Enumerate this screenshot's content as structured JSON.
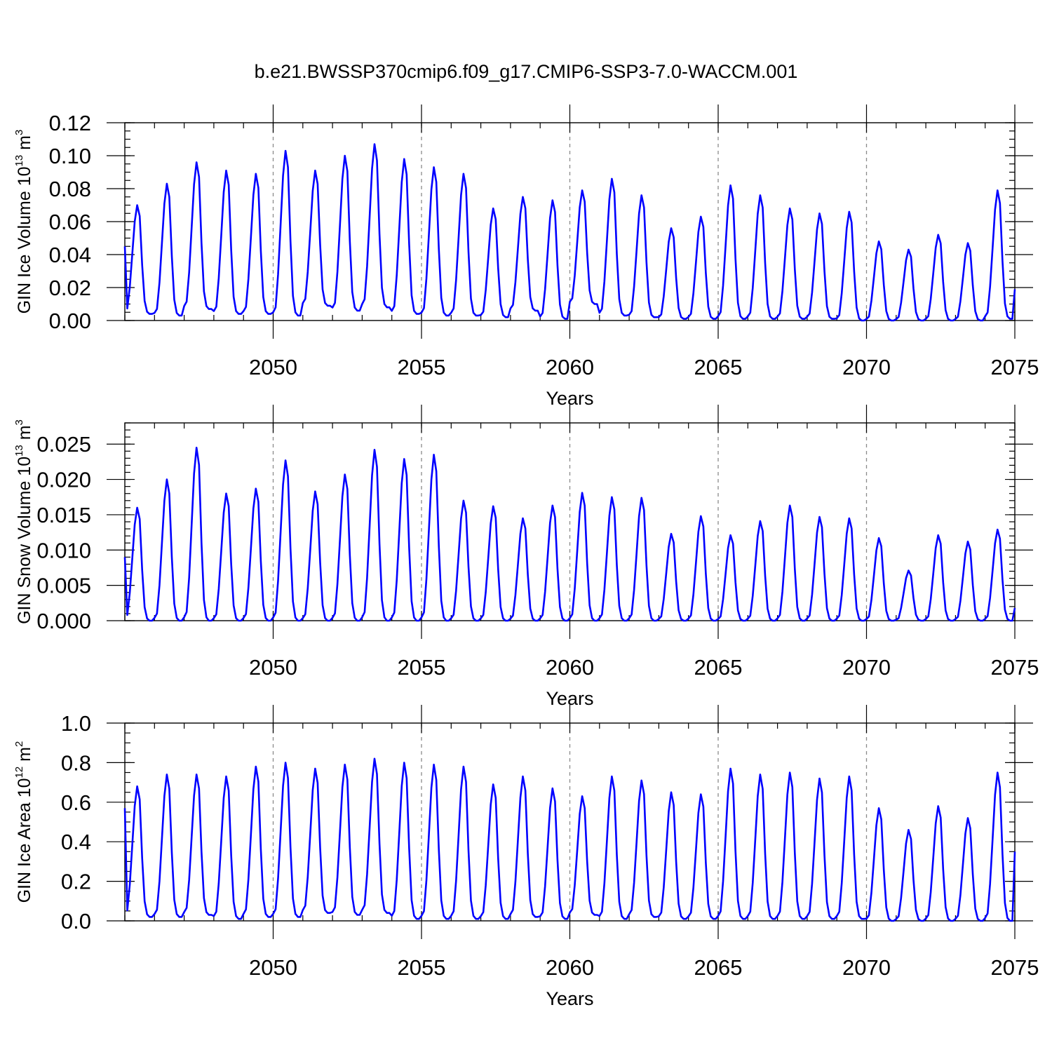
{
  "title": "b.e21.BWSSP370cmip6.f09_g17.CMIP6-SSP3-7.0-WACCM.001",
  "colors": {
    "line": "#0000ff",
    "grid": "#8a8a8a",
    "axis": "#000000",
    "background": "#ffffff"
  },
  "chart_data": [
    {
      "type": "line",
      "name": "GIN Ice Volume",
      "ylabel": {
        "text": "GIN Ice Volume 10",
        "exponent": "13",
        "unit": "m",
        "unit_exponent": "3"
      },
      "xlabel": "Years",
      "xlim": [
        2045.0,
        2075.0
      ],
      "ylim": [
        0,
        0.12
      ],
      "yticks": [
        "0.00",
        "0.02",
        "0.04",
        "0.06",
        "0.08",
        "0.10",
        "0.12"
      ],
      "xticks": [
        "2050",
        "2055",
        "2060",
        "2065",
        "2070",
        "2075"
      ],
      "x_minor_step": 1,
      "y_minor_step": 0.005,
      "grid": "dashed vertical lines every 5 years",
      "series": [
        {
          "name": "GIN Ice Volume",
          "annual_min": [
            0.004,
            0.003,
            0.007,
            0.004,
            0.004,
            0.003,
            0.009,
            0.006,
            0.008,
            0.004,
            0.003,
            0.003,
            0.002,
            0.006,
            0.001,
            0.01,
            0.003,
            0.002,
            0.001,
            0.001,
            0.001,
            0.001,
            0.001,
            0.001,
            0.0,
            0.0,
            0.0,
            0.0,
            0.0,
            0.001
          ],
          "annual_max": [
            0.07,
            0.083,
            0.096,
            0.091,
            0.089,
            0.103,
            0.091,
            0.1,
            0.107,
            0.098,
            0.093,
            0.089,
            0.068,
            0.075,
            0.073,
            0.079,
            0.086,
            0.076,
            0.056,
            0.063,
            0.082,
            0.076,
            0.068,
            0.065,
            0.066,
            0.048,
            0.043,
            0.052,
            0.047,
            0.079
          ],
          "start_value": 0.045,
          "end_value": 0.019
        }
      ]
    },
    {
      "type": "line",
      "name": "GIN Snow Volume",
      "ylabel": {
        "text": "GIN Snow Volume 10",
        "exponent": "13",
        "unit": "m",
        "unit_exponent": "3"
      },
      "xlabel": "Years",
      "xlim": [
        2045.0,
        2075.0
      ],
      "ylim": [
        0,
        0.028
      ],
      "yticks": [
        "0.000",
        "0.005",
        "0.010",
        "0.015",
        "0.020",
        "0.025"
      ],
      "xticks": [
        "2050",
        "2055",
        "2060",
        "2065",
        "2070",
        "2075"
      ],
      "x_minor_step": 1,
      "y_minor_step": 0.001,
      "grid": "dashed vertical lines every 5 years",
      "series": [
        {
          "name": "GIN Snow Volume",
          "annual_min": [
            0.0,
            0.0,
            0.0,
            0.0,
            0.0,
            0.0,
            0.0,
            0.0,
            0.0,
            0.0,
            0.0,
            0.0,
            0.0,
            0.0,
            0.0,
            0.0,
            0.0,
            0.0,
            0.0,
            0.0,
            0.0,
            0.0,
            0.0,
            0.0,
            0.0,
            0.0,
            0.0,
            0.0,
            0.0,
            0.0
          ],
          "annual_max": [
            0.016,
            0.02,
            0.0245,
            0.018,
            0.0187,
            0.0227,
            0.0183,
            0.0207,
            0.0242,
            0.0229,
            0.0235,
            0.017,
            0.0162,
            0.0145,
            0.0163,
            0.0181,
            0.0175,
            0.0174,
            0.0123,
            0.0148,
            0.0121,
            0.0141,
            0.0163,
            0.0147,
            0.0145,
            0.0117,
            0.0071,
            0.0121,
            0.0112,
            0.0129
          ],
          "start_value": 0.009,
          "end_value": 0.0018
        }
      ]
    },
    {
      "type": "line",
      "name": "GIN Ice Area",
      "ylabel": {
        "text": "GIN Ice Area 10",
        "exponent": "12",
        "unit": "m",
        "unit_exponent": "2"
      },
      "xlabel": "Years",
      "xlim": [
        2045.0,
        2075.0
      ],
      "ylim": [
        0,
        1.0
      ],
      "yticks": [
        "0.0",
        "0.2",
        "0.4",
        "0.6",
        "0.8",
        "1.0"
      ],
      "xticks": [
        "2050",
        "2055",
        "2060",
        "2065",
        "2070",
        "2075"
      ],
      "x_minor_step": 1,
      "y_minor_step": 0.05,
      "grid": "dashed vertical lines every 5 years",
      "series": [
        {
          "name": "GIN Ice Area",
          "annual_min": [
            0.02,
            0.02,
            0.03,
            0.01,
            0.02,
            0.02,
            0.04,
            0.03,
            0.04,
            0.01,
            0.01,
            0.01,
            0.01,
            0.02,
            0.01,
            0.03,
            0.01,
            0.02,
            0.01,
            0.01,
            0.01,
            0.01,
            0.01,
            0.01,
            0.01,
            0.0,
            0.0,
            0.0,
            0.0,
            0.0
          ],
          "annual_max": [
            0.68,
            0.74,
            0.74,
            0.73,
            0.78,
            0.8,
            0.77,
            0.79,
            0.82,
            0.8,
            0.79,
            0.78,
            0.69,
            0.73,
            0.67,
            0.63,
            0.73,
            0.71,
            0.65,
            0.64,
            0.77,
            0.74,
            0.75,
            0.72,
            0.73,
            0.57,
            0.46,
            0.58,
            0.52,
            0.75
          ],
          "start_value": 0.57,
          "end_value": 0.35
        }
      ]
    }
  ]
}
